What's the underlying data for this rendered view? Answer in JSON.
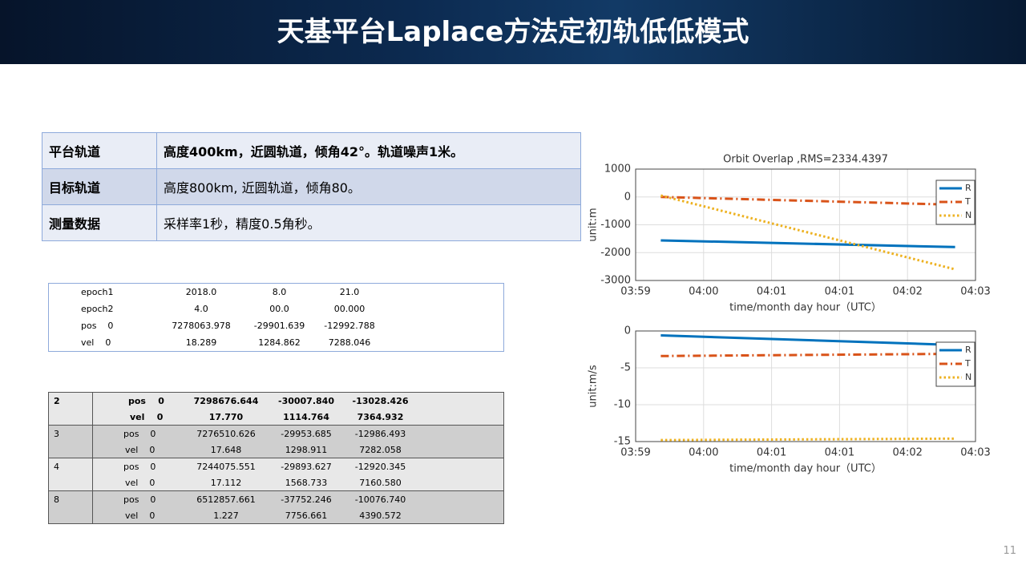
{
  "header": {
    "title": "天基平台Laplace方法定初轨低低模式"
  },
  "info_table": {
    "rows": [
      [
        "平台轨道",
        "高度400km，近圆轨道，倾角42°。轨道噪声1米。"
      ],
      [
        "目标轨道",
        "高度800km, 近圆轨道，倾角80。"
      ],
      [
        "测量数据",
        "采样率1秒，精度0.5角秒。"
      ]
    ]
  },
  "epoch_table": {
    "rows": [
      [
        "epoch1",
        "2018.0",
        "8.0",
        "21.0"
      ],
      [
        "epoch2",
        "4.0",
        "00.0",
        "00.000"
      ],
      [
        "pos    0",
        "7278063.978",
        "-29901.639",
        "-12992.788"
      ],
      [
        "vel    0",
        "18.289",
        "1284.862",
        "7288.046"
      ]
    ]
  },
  "result_table": {
    "groups": [
      {
        "id": "2",
        "rows": [
          [
            "pos    0",
            "7298676.644",
            "-30007.840",
            "-13028.426"
          ],
          [
            "vel    0",
            "17.770",
            "1114.764",
            "7364.932"
          ]
        ]
      },
      {
        "id": "3",
        "rows": [
          [
            "pos    0",
            "7276510.626",
            "-29953.685",
            "-12986.493"
          ],
          [
            "vel    0",
            "17.648",
            "1298.911",
            "7282.058"
          ]
        ]
      },
      {
        "id": "4",
        "rows": [
          [
            "pos    0",
            "7244075.551",
            "-29893.627",
            "-12920.345"
          ],
          [
            "vel    0",
            "17.112",
            "1568.733",
            "7160.580"
          ]
        ]
      },
      {
        "id": "8",
        "rows": [
          [
            "pos    0",
            "6512857.661",
            "-37752.246",
            "-10076.740"
          ],
          [
            "vel    0",
            "1.227",
            "7756.661",
            "4390.572"
          ]
        ]
      }
    ]
  },
  "page_number": "11",
  "chart_data": [
    {
      "type": "line",
      "title": "Orbit Overlap ,RMS=2334.4397",
      "x_label": "time/month day hour（UTC）",
      "y_label": "unit:m",
      "xlim": [
        0,
        5
      ],
      "xticks": [
        {
          "value": 0,
          "label": "03:59"
        },
        {
          "value": 1,
          "label": "04:00"
        },
        {
          "value": 2,
          "label": "04:01"
        },
        {
          "value": 3,
          "label": "04:01"
        },
        {
          "value": 4,
          "label": "04:02"
        },
        {
          "value": 5,
          "label": "04:03"
        }
      ],
      "ylim": [
        -3000,
        1000
      ],
      "yticks": [
        -3000,
        -2000,
        -1000,
        0,
        1000
      ],
      "grid": true,
      "legend": "northeast",
      "series": [
        {
          "name": "R",
          "color": "#0072bd",
          "line_style": "solid",
          "x": [
            0.37,
            4.7
          ],
          "values": [
            -1560,
            -1800
          ]
        },
        {
          "name": "T",
          "color": "#d95319",
          "line_style": "dashdot",
          "x": [
            0.37,
            4.7
          ],
          "values": [
            0,
            -280
          ]
        },
        {
          "name": "N",
          "color": "#edb120",
          "line_style": "dotted",
          "x": [
            0.37,
            4.7
          ],
          "values": [
            50,
            -2600
          ]
        }
      ]
    },
    {
      "type": "line",
      "x_label": "time/month day hour（UTC）",
      "y_label": "unit:m/s",
      "xlim": [
        0,
        5
      ],
      "xticks": [
        {
          "value": 0,
          "label": "03:59"
        },
        {
          "value": 1,
          "label": "04:00"
        },
        {
          "value": 2,
          "label": "04:01"
        },
        {
          "value": 3,
          "label": "04:01"
        },
        {
          "value": 4,
          "label": "04:02"
        },
        {
          "value": 5,
          "label": "04:03"
        }
      ],
      "ylim": [
        -15,
        0
      ],
      "yticks": [
        -15,
        -10,
        -5,
        0
      ],
      "grid": true,
      "legend": "northeast",
      "series": [
        {
          "name": "R",
          "color": "#0072bd",
          "line_style": "solid",
          "x": [
            0.37,
            4.7
          ],
          "values": [
            -0.6,
            -1.9
          ]
        },
        {
          "name": "T",
          "color": "#d95319",
          "line_style": "dashdot",
          "x": [
            0.37,
            4.7
          ],
          "values": [
            -3.4,
            -3.1
          ]
        },
        {
          "name": "N",
          "color": "#edb120",
          "line_style": "dotted",
          "x": [
            0.37,
            4.7
          ],
          "values": [
            -14.8,
            -14.6
          ]
        }
      ]
    }
  ]
}
